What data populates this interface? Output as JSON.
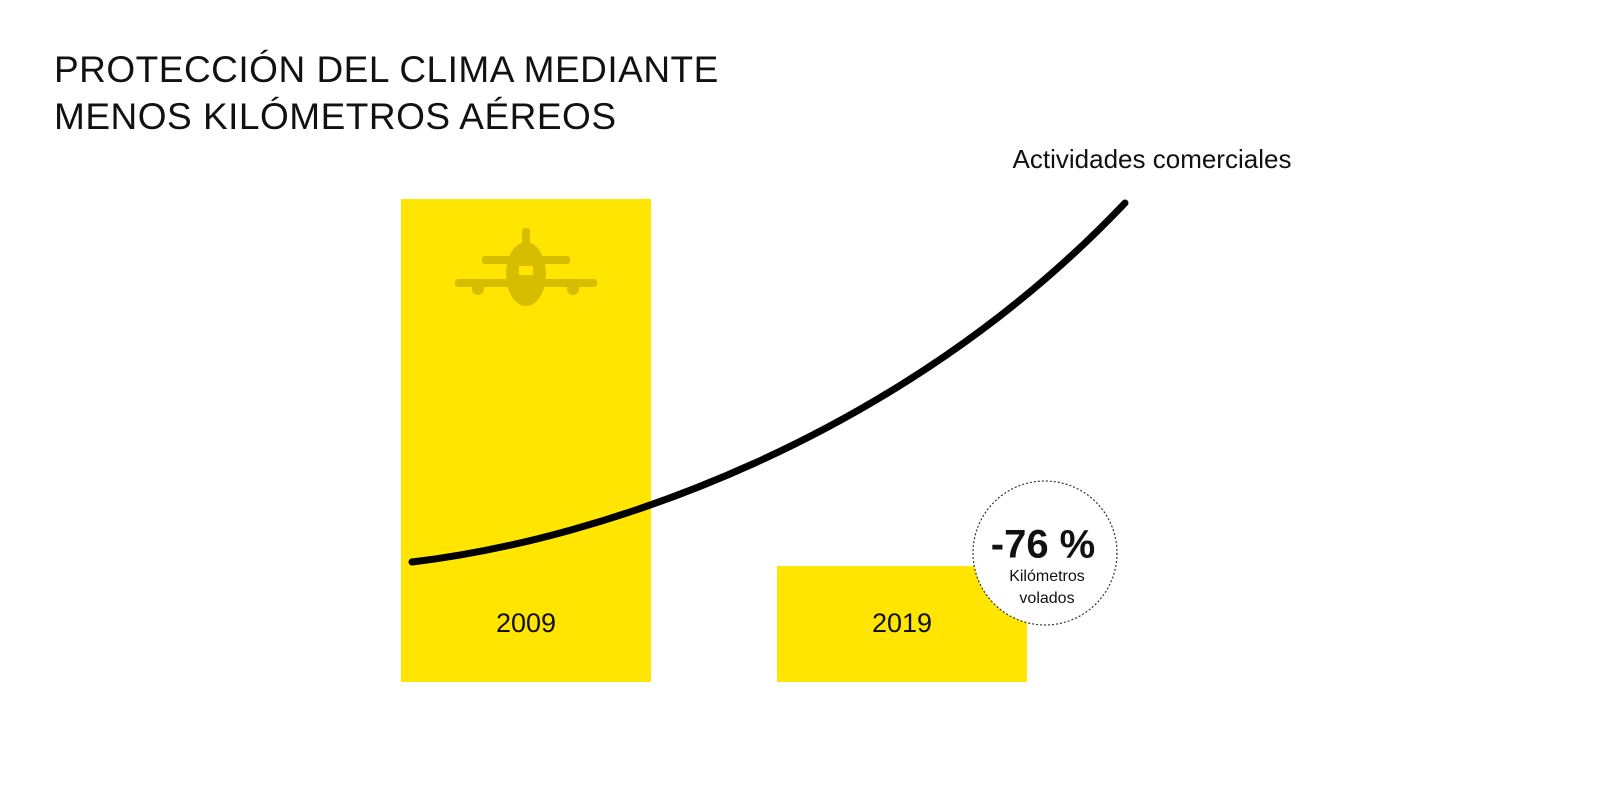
{
  "chart_data": {
    "type": "bar",
    "title": "PROTECCIÓN DEL CLIMA MEDIANTE MENOS KILÓMETROS AÉREOS",
    "categories": [
      "2009",
      "2019"
    ],
    "values": [
      100,
      24
    ],
    "color": "#ffe500",
    "ylim": [
      0,
      100
    ],
    "curve_label": "Actividades comerciales",
    "annotation": {
      "value": "-76 %",
      "text": [
        "Kilómetros",
        "volados"
      ]
    }
  }
}
